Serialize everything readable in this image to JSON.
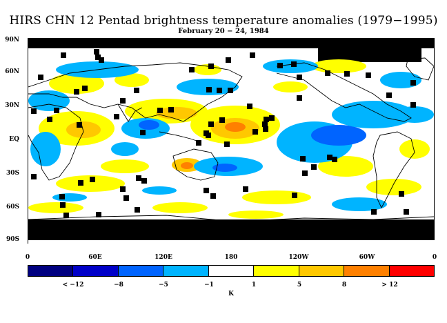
{
  "title": "HIRS CHN 12 Pentad brightness temperature anomalies (1979−1995)",
  "subtitle": "February 20 − 24, 1984",
  "lat_labels": [
    "90N",
    "60N",
    "30N",
    "EQ",
    "30S",
    "60S",
    "90S"
  ],
  "lon_labels": [
    "0",
    "60E",
    "120E",
    "180",
    "120W",
    "60W",
    "0"
  ],
  "colorbar": {
    "labels": [
      "< −12",
      "−8",
      "−5",
      "−1",
      "1",
      "5",
      "8",
      "> 12"
    ],
    "colors": [
      "#000080",
      "#0000c8",
      "#0064ff",
      "#00b4ff",
      "#ffffff",
      "#ffff00",
      "#ffc800",
      "#ff8000",
      "#ff0000"
    ],
    "unit": "K"
  },
  "map_colors": {
    "land_coast": "#000000",
    "missing": "#000000",
    "weak_pos": "#ffff00",
    "mod_pos": "#ffc800",
    "strong_pos": "#ff8000",
    "weak_neg": "#00b4ff",
    "mod_neg": "#0064ff",
    "neutral": "#ffffff"
  }
}
